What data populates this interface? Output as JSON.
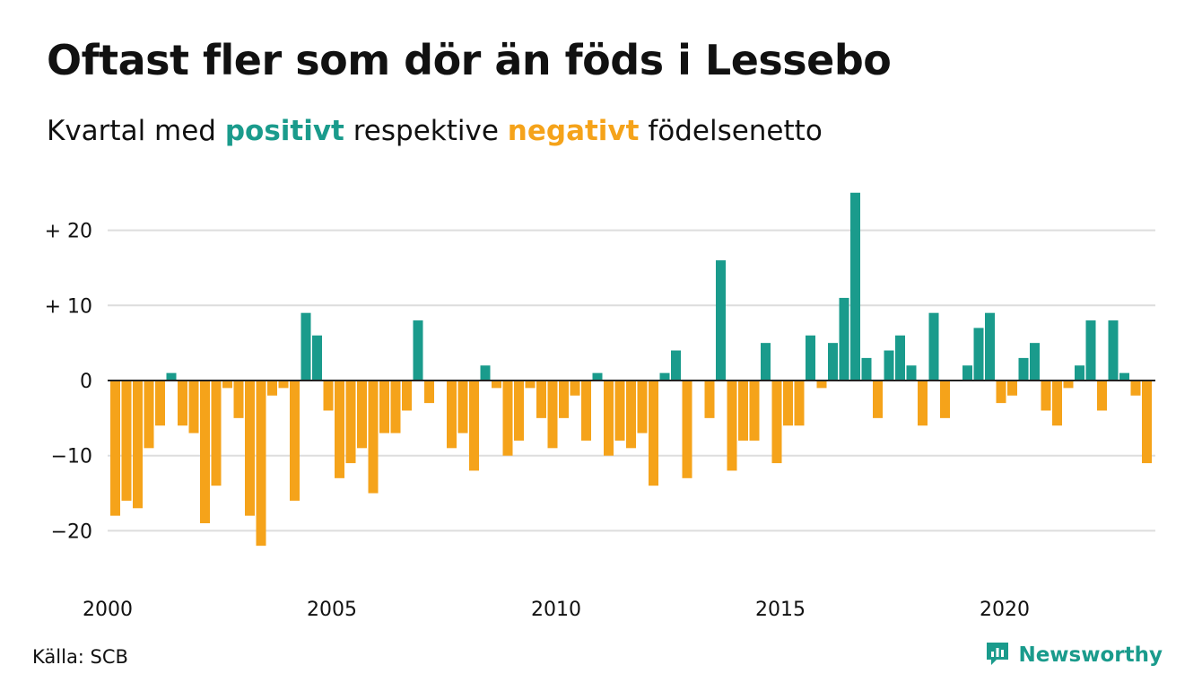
{
  "header": {
    "title": "Oftast fler som dör än föds i Lessebo",
    "subtitle_before": "Kvartal med ",
    "subtitle_positive": "positivt",
    "subtitle_middle": " respektive ",
    "subtitle_negative": "negativt",
    "subtitle_after": " födelsenetto"
  },
  "footer": {
    "source": "Källa: SCB",
    "brand": "Newsworthy",
    "brand_icon": "newsworthy-logo-icon"
  },
  "colors": {
    "positive": "#1a9b8c",
    "negative": "#f5a31a",
    "grid": "#dddddd",
    "zero": "#222222"
  },
  "chart_data": {
    "type": "bar",
    "x_start": "2000 Q1",
    "x_tick_labels": [
      "2000",
      "2005",
      "2010",
      "2015",
      "2020"
    ],
    "y_tick_labels": [
      "+ 20",
      "+ 10",
      "0",
      "−10",
      "−20"
    ],
    "y_ticks": [
      20,
      10,
      0,
      -10,
      -20
    ],
    "ylim": [
      -27,
      25
    ],
    "grid": true,
    "series": [
      {
        "values": [
          -18,
          -16,
          -17,
          -9,
          -6,
          1,
          -6,
          -7,
          -19,
          -14,
          -1,
          -5,
          -18,
          -22,
          -2,
          -1,
          -16,
          9,
          6,
          -4,
          -13,
          -11,
          -9,
          -15,
          -7,
          -7,
          -4,
          8,
          -3,
          0,
          -9,
          -7,
          -12,
          2,
          -1,
          -10,
          -8,
          -1,
          -5,
          -9,
          -5,
          -2,
          -8,
          1,
          -10,
          -8,
          -9,
          -7,
          -14,
          1,
          4,
          -13,
          0,
          -5,
          16,
          -12,
          -8,
          -8,
          5,
          -11,
          -6,
          -6,
          6,
          -1,
          5,
          11,
          25,
          3,
          -5,
          4,
          6,
          2,
          -6,
          9,
          -5,
          0,
          2,
          7,
          9,
          -3,
          -2,
          3,
          5,
          -4,
          -6,
          -1,
          2,
          8,
          -4,
          8,
          1,
          -2,
          -11
        ]
      }
    ]
  }
}
